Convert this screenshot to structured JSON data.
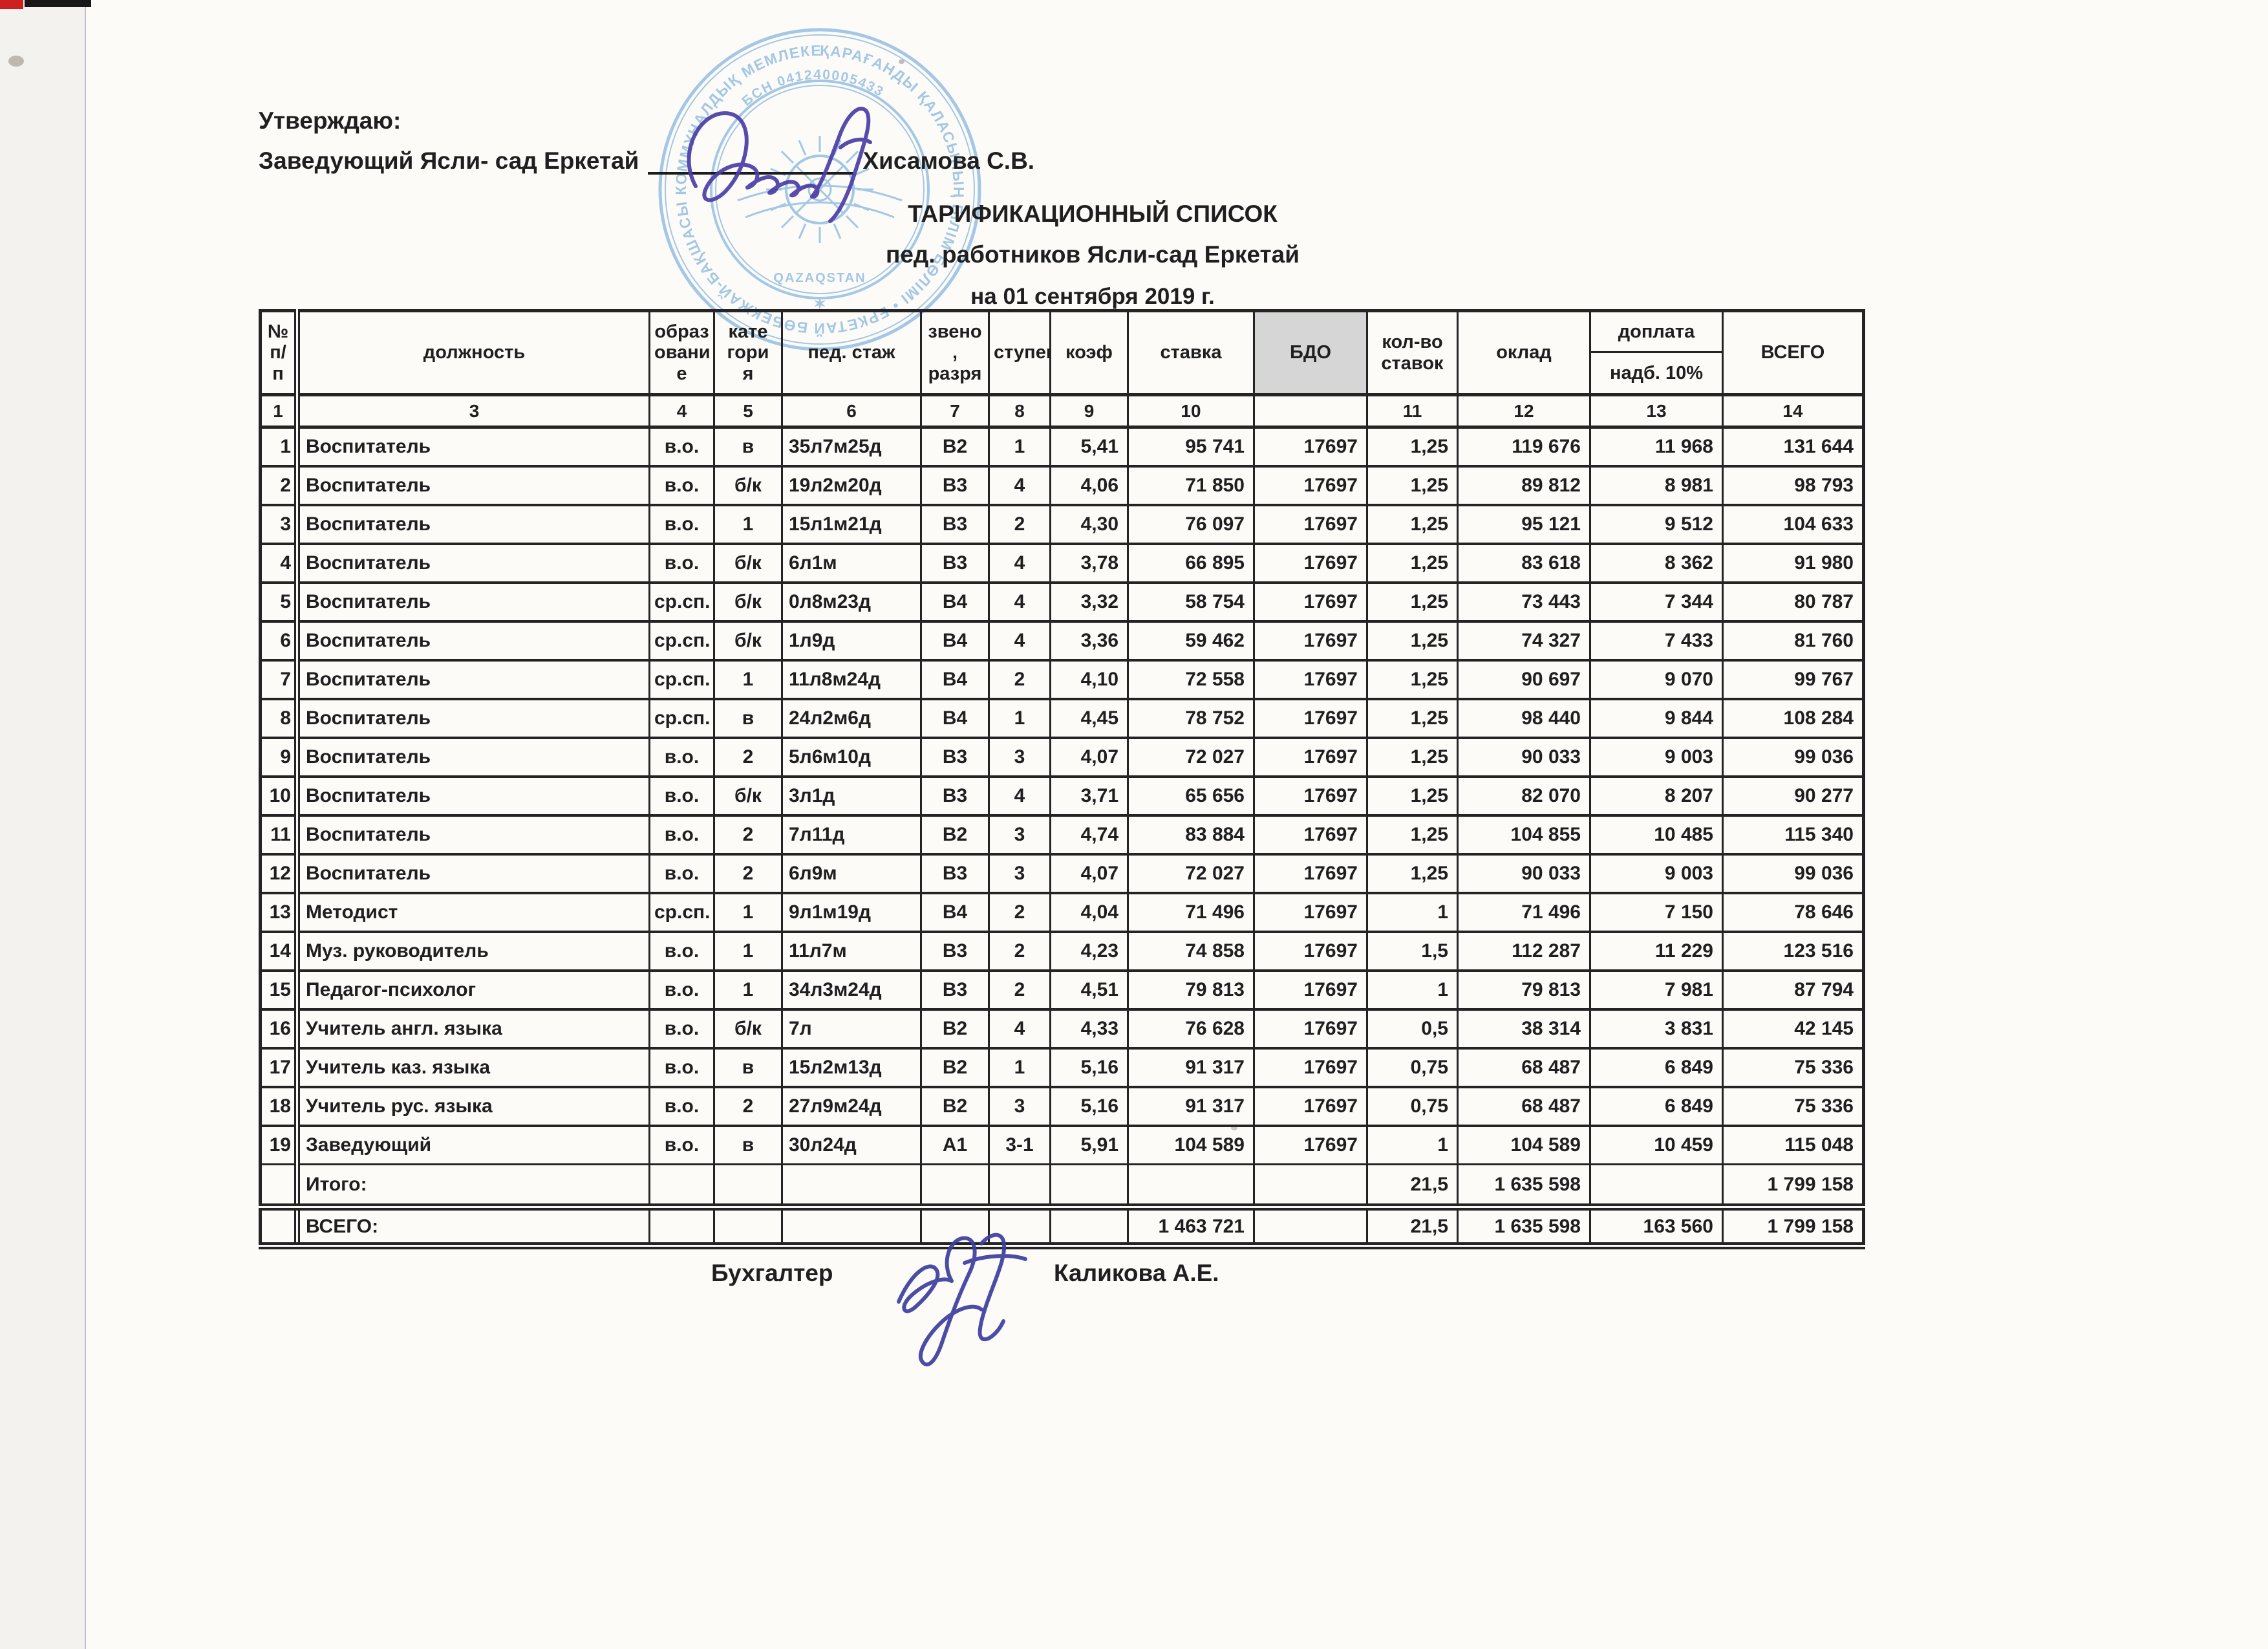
{
  "approve": {
    "label": "Утверждаю:",
    "line_text": "Заведующий Ясли- сад Еркетай",
    "name": "Хисамова С.В."
  },
  "title": {
    "line1": "ТАРИФИКАЦИОННЫЙ СПИСОК",
    "line2": "пед. работников Ясли-сад Еркетай",
    "line3": "на 01 сентября 2019 г."
  },
  "stamp": {
    "color": "#5f9fd6",
    "ring_text": "ҚАРАҒАНДЫ ҚАЛАСЫНЫҢ БІЛІМ БӨЛІМІ • ЕРКЕТАЙ БӨБЕКЖАЙ-БАҚШАСЫ КОММУНАЛДЫҚ МЕМЛЕКЕТТІК ҚАЗЫНАЛЫҚ КӘСІПОРНЫ •",
    "inner_text": "БСН 041240005433",
    "center_text": "QAZAQSTAN",
    "star": "✶"
  },
  "ink": {
    "director_sig_color": "#4a3da5",
    "accountant_sig_color": "#3c3f9f"
  },
  "table": {
    "headers": [
      {
        "label": "№\nп/п",
        "num": "1"
      },
      {
        "label": "должность",
        "num": "3"
      },
      {
        "label": "образ\nовани\nе",
        "num": "4"
      },
      {
        "label": "кате\nгори\nя",
        "num": "5"
      },
      {
        "label": "пед. стаж",
        "num": "6"
      },
      {
        "label": "звено\n,\nразря",
        "num": "7"
      },
      {
        "label": "ступен",
        "num": "8"
      },
      {
        "label": "коэф",
        "num": "9"
      },
      {
        "label": "ставка",
        "num": "10"
      },
      {
        "label": "БДО",
        "num": ""
      },
      {
        "label": "кол-во\nставок",
        "num": "11"
      },
      {
        "label": "оклад",
        "num": "12"
      },
      {
        "label": "доплата",
        "sub": "надб. 10%",
        "num": "13"
      },
      {
        "label": "ВСЕГО",
        "num": "14"
      }
    ],
    "rows": [
      [
        "1",
        "Воспитатель",
        "в.о.",
        "в",
        "35л7м25д",
        "В2",
        "1",
        "5,41",
        "95 741",
        "17697",
        "1,25",
        "119 676",
        "11 968",
        "131 644"
      ],
      [
        "2",
        "Воспитатель",
        "в.о.",
        "б/к",
        "19л2м20д",
        "В3",
        "4",
        "4,06",
        "71 850",
        "17697",
        "1,25",
        "89 812",
        "8 981",
        "98 793"
      ],
      [
        "3",
        "Воспитатель",
        "в.о.",
        "1",
        "15л1м21д",
        "В3",
        "2",
        "4,30",
        "76 097",
        "17697",
        "1,25",
        "95 121",
        "9 512",
        "104 633"
      ],
      [
        "4",
        "Воспитатель",
        "в.о.",
        "б/к",
        "6л1м",
        "В3",
        "4",
        "3,78",
        "66 895",
        "17697",
        "1,25",
        "83 618",
        "8 362",
        "91 980"
      ],
      [
        "5",
        "Воспитатель",
        "ср.сп.",
        "б/к",
        "0л8м23д",
        "В4",
        "4",
        "3,32",
        "58 754",
        "17697",
        "1,25",
        "73 443",
        "7 344",
        "80 787"
      ],
      [
        "6",
        "Воспитатель",
        "ср.сп.",
        "б/к",
        "1л9д",
        "В4",
        "4",
        "3,36",
        "59 462",
        "17697",
        "1,25",
        "74 327",
        "7 433",
        "81 760"
      ],
      [
        "7",
        "Воспитатель",
        "ср.сп.",
        "1",
        "11л8м24д",
        "В4",
        "2",
        "4,10",
        "72 558",
        "17697",
        "1,25",
        "90 697",
        "9 070",
        "99 767"
      ],
      [
        "8",
        "Воспитатель",
        "ср.сп.",
        "в",
        "24л2м6д",
        "В4",
        "1",
        "4,45",
        "78 752",
        "17697",
        "1,25",
        "98 440",
        "9 844",
        "108 284"
      ],
      [
        "9",
        "Воспитатель",
        "в.о.",
        "2",
        "5л6м10д",
        "В3",
        "3",
        "4,07",
        "72 027",
        "17697",
        "1,25",
        "90 033",
        "9 003",
        "99 036"
      ],
      [
        "10",
        "Воспитатель",
        "в.о.",
        "б/к",
        "3л1д",
        "В3",
        "4",
        "3,71",
        "65 656",
        "17697",
        "1,25",
        "82 070",
        "8 207",
        "90 277"
      ],
      [
        "11",
        "Воспитатель",
        "в.о.",
        "2",
        "7л11д",
        "В2",
        "3",
        "4,74",
        "83 884",
        "17697",
        "1,25",
        "104 855",
        "10 485",
        "115 340"
      ],
      [
        "12",
        "Воспитатель",
        "в.о.",
        "2",
        "6л9м",
        "В3",
        "3",
        "4,07",
        "72 027",
        "17697",
        "1,25",
        "90 033",
        "9 003",
        "99 036"
      ],
      [
        "13",
        "Методист",
        "ср.сп.",
        "1",
        "9л1м19д",
        "В4",
        "2",
        "4,04",
        "71 496",
        "17697",
        "1",
        "71 496",
        "7 150",
        "78 646"
      ],
      [
        "14",
        "Муз. руководитель",
        "в.о.",
        "1",
        "11л7м",
        "В3",
        "2",
        "4,23",
        "74 858",
        "17697",
        "1,5",
        "112 287",
        "11 229",
        "123 516"
      ],
      [
        "15",
        "Педагог-психолог",
        "в.о.",
        "1",
        "34л3м24д",
        "В3",
        "2",
        "4,51",
        "79 813",
        "17697",
        "1",
        "79 813",
        "7 981",
        "87 794"
      ],
      [
        "16",
        "Учитель англ. языка",
        "в.о.",
        "б/к",
        "7л",
        "В2",
        "4",
        "4,33",
        "76 628",
        "17697",
        "0,5",
        "38 314",
        "3 831",
        "42 145"
      ],
      [
        "17",
        "Учитель каз. языка",
        "в.о.",
        "в",
        "15л2м13д",
        "В2",
        "1",
        "5,16",
        "91 317",
        "17697",
        "0,75",
        "68 487",
        "6 849",
        "75 336"
      ],
      [
        "18",
        "Учитель рус. языка",
        "в.о.",
        "2",
        "27л9м24д",
        "В2",
        "3",
        "5,16",
        "91 317",
        "17697",
        "0,75",
        "68 487",
        "6 849",
        "75 336"
      ],
      [
        "19",
        "Заведующий",
        "в.о.",
        "в",
        "30л24д",
        "А1",
        "3-1",
        "5,91",
        "104 589",
        "17697",
        "1",
        "104 589",
        "10 459",
        "115 048"
      ]
    ],
    "itogo_row": [
      "",
      "Итого:",
      "",
      "",
      "",
      "",
      "",
      "",
      "",
      "",
      "21,5",
      "1 635 598",
      "",
      "1 799 158"
    ],
    "vsego_row": [
      "",
      "ВСЕГО:",
      "",
      "",
      "",
      "",
      "",
      "",
      "1 463 721",
      "",
      "21,5",
      "1 635 598",
      "163 560",
      "1 799 158"
    ]
  },
  "footer": {
    "role": "Бухгалтер",
    "name": "Каликова А.Е."
  }
}
